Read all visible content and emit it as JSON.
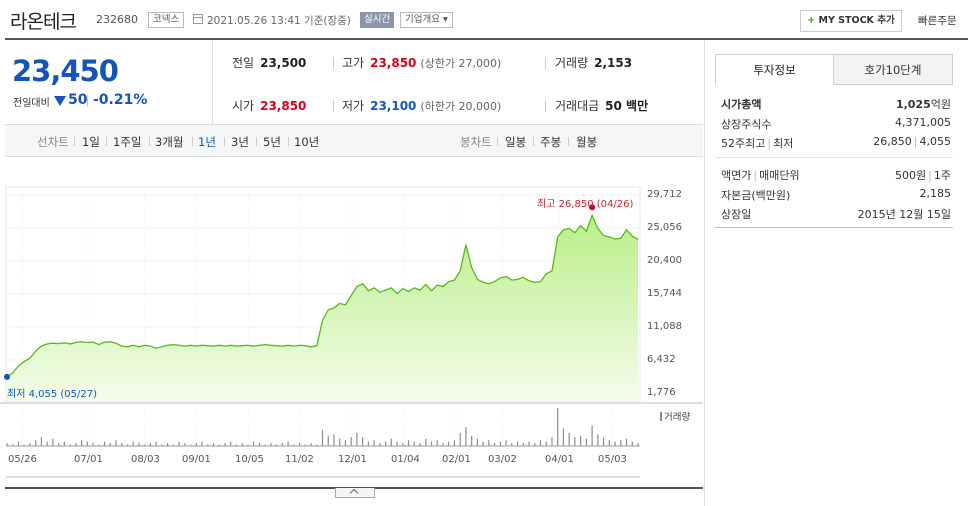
{
  "header": {
    "company_name": "라온테크",
    "stock_code": "232680",
    "market_badge": "코넥스",
    "datetime": "2021.05.26 13:41 기준(장중)",
    "realtime_badge": "실시간",
    "company_info_button": "기업개요 ▾",
    "mystock_plus": "+",
    "mystock_button": "MY STOCK 추가",
    "quick_order": "빠른주문"
  },
  "price": {
    "current": "23,450",
    "change_label": "전일대비",
    "change": "50",
    "change_pct": "-0.21%"
  },
  "stats": {
    "prev_close_label": "전일",
    "prev_close": "23,500",
    "high_label": "고가",
    "high": "23,850",
    "upper_limit": "(상한가 27,000)",
    "volume_label": "거래량",
    "volume": "2,153",
    "open_label": "시가",
    "open": "23,850",
    "low_label": "저가",
    "low": "23,100",
    "lower_limit": "(하한가 20,000)",
    "trade_value_label": "거래대금",
    "trade_value": "50 백만"
  },
  "tabs": {
    "line_chart": "선차트",
    "d1": "1일",
    "w1": "1주일",
    "m3": "3개월",
    "y1": "1년",
    "y3": "3년",
    "y5": "5년",
    "y10": "10년",
    "candle_chart": "봉차트",
    "daily": "일봉",
    "weekly": "주봉",
    "monthly": "월봉"
  },
  "chart_data": {
    "type": "area",
    "period": "1년",
    "y_ticks": [
      "29,712",
      "25,056",
      "20,400",
      "15,744",
      "11,088",
      "6,432",
      "1,776"
    ],
    "ylim": [
      1776,
      29712
    ],
    "x_ticks": [
      "05/26",
      "07/01",
      "08/03",
      "09/01",
      "10/05",
      "11/02",
      "12/01",
      "01/04",
      "02/01",
      "03/02",
      "04/01",
      "05/03"
    ],
    "high_annotation": "최고 26,850 (04/26)",
    "low_annotation": "최저 4,055 (05/27)",
    "volume_label": "거래량",
    "price_series": [
      4055,
      4600,
      5600,
      6200,
      6700,
      7700,
      8400,
      8700,
      8800,
      8750,
      8850,
      8700,
      8900,
      9000,
      8900,
      8950,
      8600,
      8950,
      9000,
      8800,
      8400,
      8300,
      8500,
      8300,
      8500,
      8400,
      8100,
      8300,
      8500,
      8600,
      8500,
      8400,
      8500,
      8400,
      8500,
      8450,
      8400,
      8500,
      8400,
      8500,
      8400,
      8450,
      8500,
      8400,
      8500,
      8600,
      8500,
      8450,
      8400,
      8500,
      8400,
      8500,
      8450,
      8300,
      8450,
      12000,
      13500,
      13800,
      14400,
      14200,
      15500,
      16800,
      17200,
      16200,
      16600,
      16000,
      16300,
      16600,
      15800,
      16500,
      16100,
      16600,
      16300,
      17100,
      16200,
      17000,
      16800,
      17500,
      17700,
      19000,
      22700,
      19500,
      17800,
      17400,
      17200,
      17500,
      18000,
      18200,
      17700,
      17800,
      18100,
      17600,
      17400,
      17500,
      18600,
      19000,
      23800,
      24800,
      25000,
      24400,
      25400,
      24600,
      26850,
      25000,
      24000,
      23800,
      23500,
      23600,
      24800,
      23900,
      23450
    ],
    "volume_series": [
      2,
      1,
      3,
      1,
      2,
      4,
      6,
      3,
      5,
      2,
      3,
      1,
      2,
      4,
      3,
      2,
      1,
      3,
      2,
      4,
      2,
      1,
      3,
      2,
      1,
      2,
      3,
      1,
      2,
      1,
      3,
      2,
      1,
      2,
      3,
      1,
      2,
      1,
      2,
      3,
      1,
      2,
      1,
      3,
      2,
      1,
      2,
      1,
      2,
      3,
      1,
      2,
      1,
      2,
      1,
      11,
      7,
      8,
      5,
      4,
      6,
      9,
      6,
      3,
      4,
      2,
      3,
      5,
      3,
      2,
      4,
      3,
      2,
      5,
      3,
      4,
      2,
      3,
      4,
      9,
      13,
      7,
      5,
      3,
      4,
      2,
      3,
      4,
      2,
      3,
      2,
      3,
      2,
      4,
      3,
      6,
      26,
      12,
      9,
      6,
      7,
      5,
      14,
      8,
      6,
      4,
      3,
      4,
      5,
      3,
      2
    ]
  },
  "right_panel": {
    "tab_invest": "투자정보",
    "tab_orderbook": "호가10단계",
    "market_cap_label": "시가총액",
    "market_cap_value": "1,025",
    "market_cap_unit": "억원",
    "shares_label": "상장주식수",
    "shares_value": "4,371,005",
    "w52_label_high": "52주최고",
    "w52_label_low": "최저",
    "w52_high": "26,850",
    "w52_low": "4,055",
    "par_label": "액면가",
    "unit_label": "매매단위",
    "par_value": "500원",
    "unit_value": "1주",
    "capital_label": "자본금(백만원)",
    "capital_value": "2,185",
    "listing_label": "상장일",
    "listing_value": "2015년 12월 15일"
  }
}
